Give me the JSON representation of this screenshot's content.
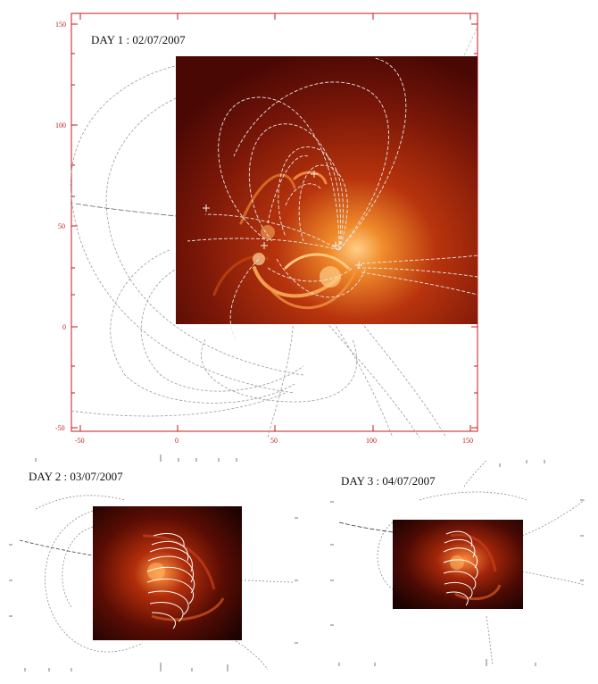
{
  "panels": [
    {
      "id": "day1",
      "title": "DAY 1 : 02/07/2007",
      "axis_color": "#c21b1b",
      "x_ticks": [
        "-50",
        "0",
        "50",
        "100",
        "150"
      ],
      "y_ticks": [
        "150",
        "100",
        "50",
        "0",
        "-50"
      ]
    },
    {
      "id": "day2",
      "title": "DAY 2 : 03/07/2007"
    },
    {
      "id": "day3",
      "title": "DAY 3 : 04/07/2007"
    }
  ],
  "colors": {
    "sun_dark": "#3a0503",
    "sun_mid": "#8a1a08",
    "sun_bright": "#ffd08a",
    "field_lines": "#dcdcdc",
    "axis": "#c21b1b"
  }
}
